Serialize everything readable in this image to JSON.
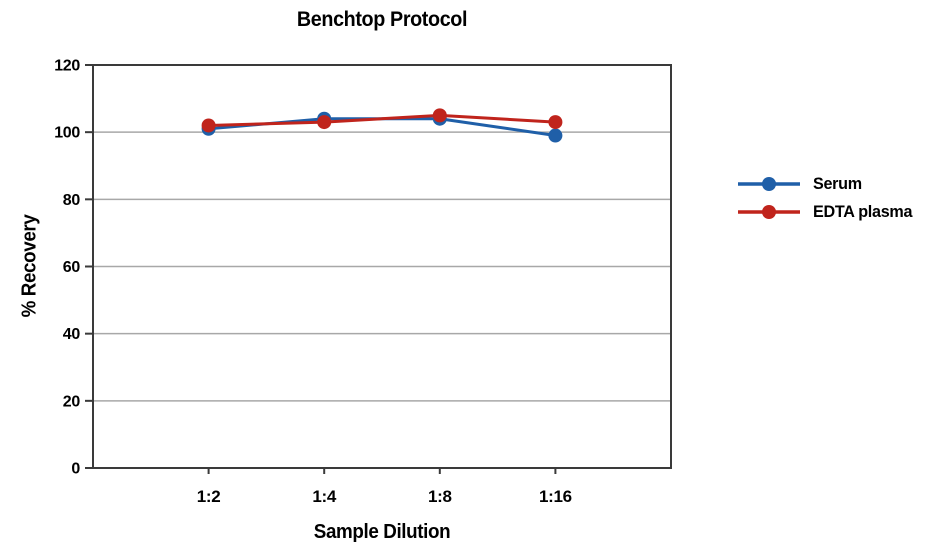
{
  "chart_data": {
    "type": "line",
    "title": "Benchtop Protocol",
    "xlabel": "Sample Dilution",
    "ylabel": "% Recovery",
    "categories": [
      "1:2",
      "1:4",
      "1:8",
      "1:16"
    ],
    "series": [
      {
        "name": "Serum",
        "color": "#1f5fa8",
        "marker": "circle",
        "values": [
          101,
          104,
          104,
          99
        ]
      },
      {
        "name": "EDTA plasma",
        "color": "#c0241c",
        "marker": "circle",
        "values": [
          102,
          103,
          105,
          103
        ]
      }
    ],
    "ylim": [
      0,
      120
    ],
    "yticks": [
      0,
      20,
      40,
      60,
      80,
      100,
      120
    ],
    "grid": "horizontal",
    "legend_position": "right"
  },
  "colors": {
    "serum": "#1f5fa8",
    "edta_plasma": "#c0241c",
    "gridline": "#a8a8a8",
    "frame": "#3a3a3a",
    "text": "#000000",
    "background": "#ffffff"
  }
}
